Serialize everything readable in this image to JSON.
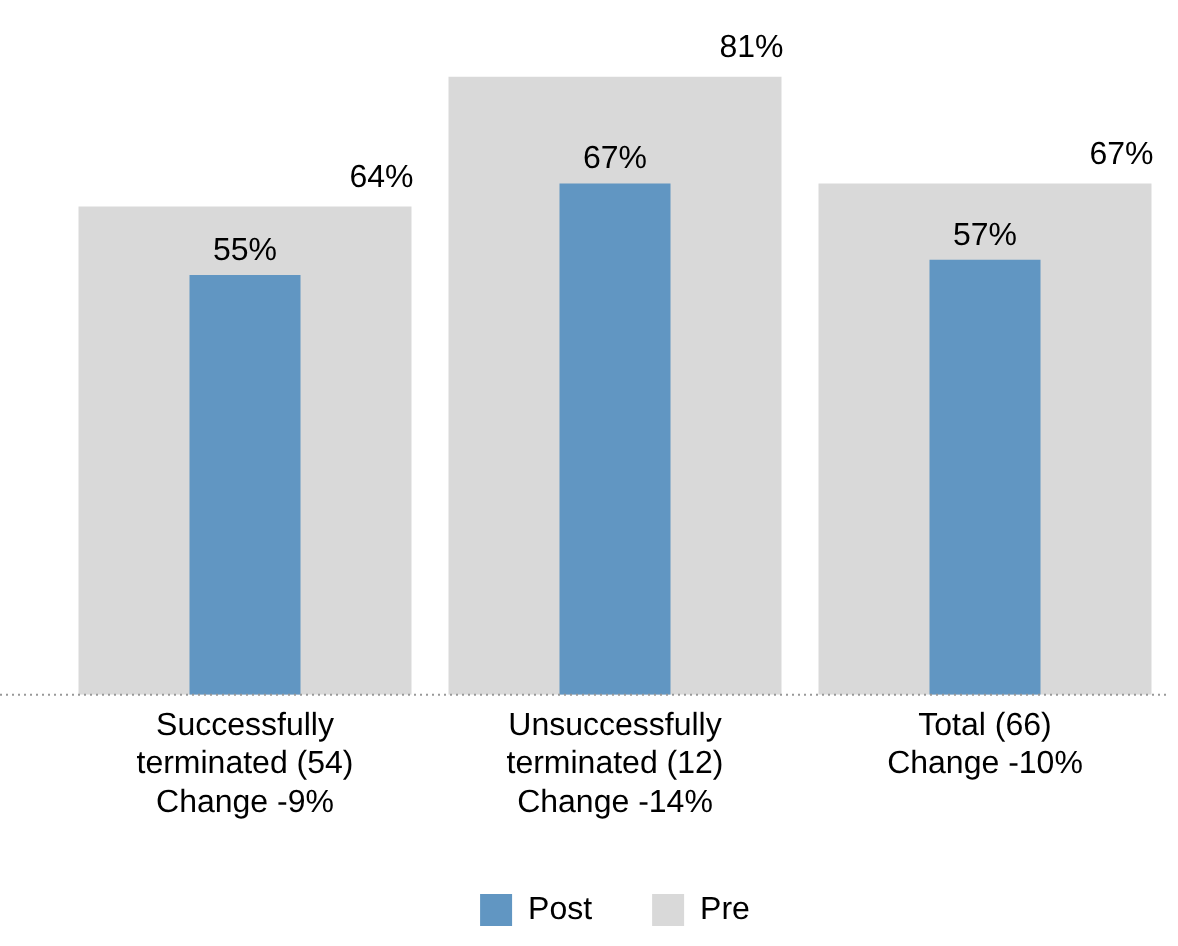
{
  "chart_data": {
    "type": "bar",
    "categories": [
      "Successfully\nterminated (54)\nChange -9%",
      "Unsuccessfully\nterminated (12)\nChange -14%",
      "Total (66)\nChange -10%"
    ],
    "series": [
      {
        "name": "Post",
        "color": "#6196c2",
        "values": [
          55,
          67,
          57
        ],
        "value_labels": [
          "55%",
          "67%",
          "57%"
        ]
      },
      {
        "name": "Pre",
        "color": "#d9d9d9",
        "values": [
          64,
          81,
          67
        ],
        "value_labels": [
          "64%",
          "81%",
          "67%"
        ]
      }
    ],
    "grid": false,
    "legend": "bottom"
  }
}
